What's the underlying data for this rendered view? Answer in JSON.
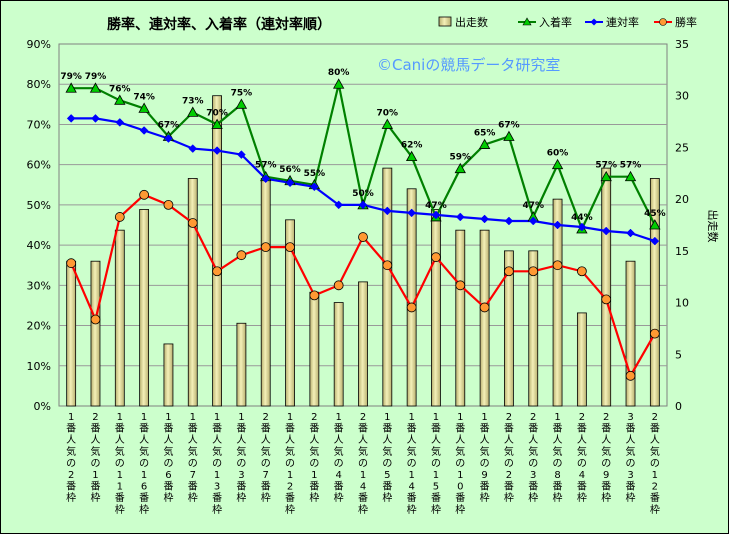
{
  "chart_data": {
    "type": "bar-line-combo",
    "title": "勝率、連対率、入着率（連対率順）",
    "watermark": "©Caniの競馬データ研究室",
    "y_left": {
      "min": 0,
      "max": 90,
      "step": 10,
      "unit": "%"
    },
    "y_right": {
      "min": 0,
      "max": 35,
      "step": 5,
      "label": "出走数"
    },
    "categories": [
      "1番人気の2番枠",
      "2番人気の1番枠",
      "1番人気の11番枠",
      "1番人気の16番枠",
      "1番人気の6番枠",
      "1番人気の7番枠",
      "1番人気の13番枠",
      "1番人気の3番枠",
      "2番人気の7番枠",
      "1番人気の12番枠",
      "2番人気の1番枠",
      "1番人気の4番枠",
      "2番人気の14番枠",
      "1番人気の5番枠",
      "1番人気の14番枠",
      "1番人気の15番枠",
      "1番人気の10番枠",
      "1番人気の9番枠",
      "2番人気の2番枠",
      "2番人気の3番枠",
      "1番人気の8番枠",
      "2番人気の4番枠",
      "2番人気の9番枠",
      "3番人気の3番枠",
      "2番人気の12番枠"
    ],
    "legend": [
      "出走数",
      "入着率",
      "連対率",
      "勝率"
    ],
    "series": [
      {
        "name": "出走数",
        "type": "bar",
        "axis": "right",
        "color": "#e8e4a0",
        "values": [
          14,
          14,
          17,
          19,
          6,
          22,
          30,
          8,
          22,
          18,
          11,
          10,
          12,
          23,
          21,
          19,
          17,
          17,
          15,
          15,
          20,
          9,
          23,
          14,
          22
        ]
      },
      {
        "name": "入着率",
        "type": "line",
        "axis": "left",
        "color": "#008000",
        "marker": "triangle",
        "values": [
          79,
          79,
          76,
          74,
          67,
          73,
          70,
          75,
          57,
          56,
          55,
          80,
          50,
          70,
          62,
          47,
          59,
          65,
          67,
          47,
          60,
          44,
          57,
          57,
          45
        ],
        "labels": [
          "79%",
          "79%",
          "76%",
          "74%",
          "67%",
          "73%",
          "70%",
          "75%",
          "57%",
          "56%",
          "55%",
          "80%",
          "50%",
          "70%",
          "62%",
          "47%",
          "59%",
          "65%",
          "67%",
          "47%",
          "60%",
          "44%",
          "57%",
          "57%",
          "45%"
        ]
      },
      {
        "name": "連対率",
        "type": "line",
        "axis": "left",
        "color": "#0000ff",
        "marker": "diamond",
        "values": [
          71.5,
          71.5,
          70.5,
          68.5,
          66.5,
          64,
          63.5,
          62.5,
          56.5,
          55.5,
          54.5,
          50,
          50,
          48.5,
          48,
          47.5,
          47,
          46.5,
          46,
          46,
          45,
          44.5,
          43.5,
          43,
          41
        ]
      },
      {
        "name": "勝率",
        "type": "line",
        "axis": "left",
        "color": "#ff0000",
        "marker": "circle",
        "markerFill": "#ff9933",
        "values": [
          35.5,
          21.5,
          47,
          52.5,
          50,
          45.5,
          33.5,
          37.5,
          39.5,
          39.5,
          27.5,
          30,
          42,
          35,
          24.5,
          37,
          30,
          24.5,
          33.5,
          33.5,
          35,
          33.5,
          26.5,
          7.5,
          18
        ]
      }
    ]
  }
}
